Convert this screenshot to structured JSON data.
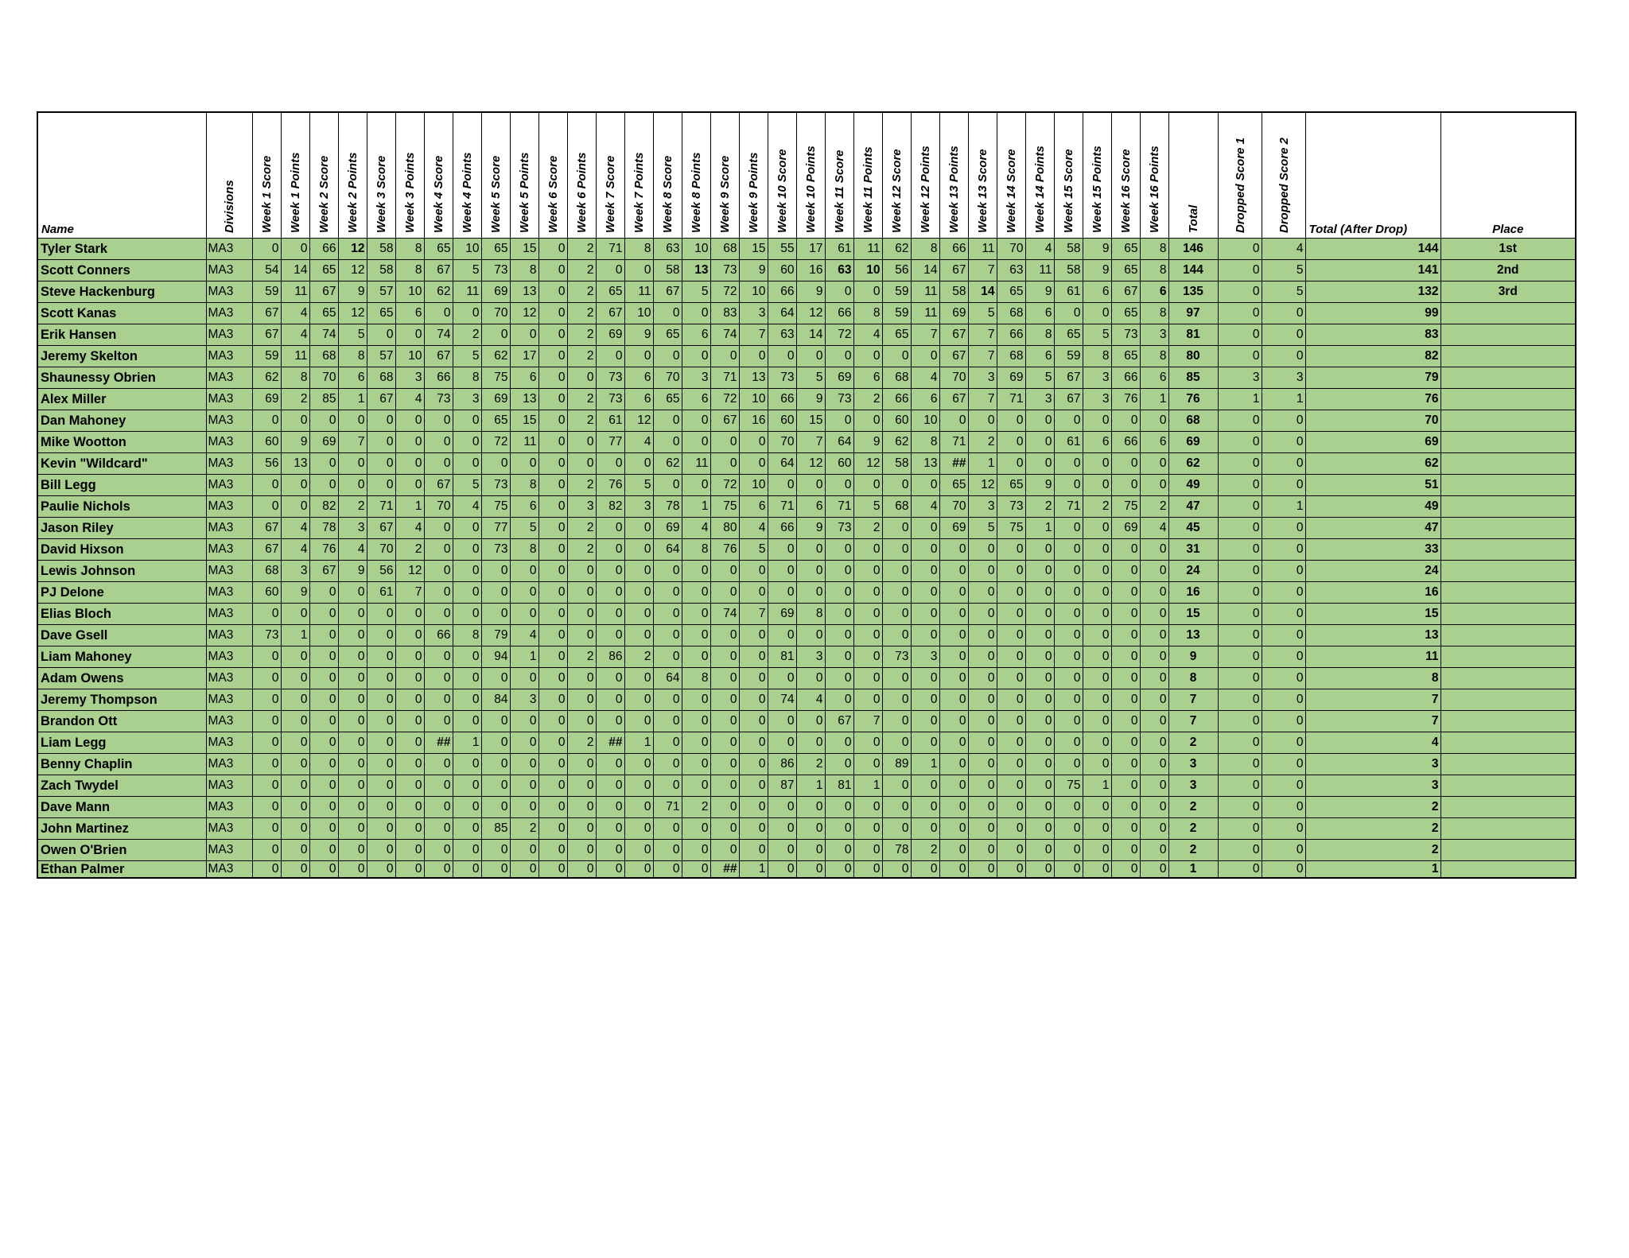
{
  "headers": {
    "name": "Name",
    "divisions": "Divisions",
    "weeks": [
      "Week 1 Score",
      "Week 1 Points",
      "Week 2 Score",
      "Week 2 Points",
      "Week 3 Score",
      "Week 3 Points",
      "Week 4 Score",
      "Week 4 Points",
      "Week 5 Score",
      "Week 5 Points",
      "Week 6 Score",
      "Week 6 Points",
      "Week 7 Score",
      "Week 7 Points",
      "Week 8 Score",
      "Week 8 Points",
      "Week 9 Score",
      "Week 9 Points",
      "Week 10 Score",
      "Week 10 Points",
      "Week 11 Score",
      "Week 11 Points",
      "Week 12 Score",
      "Week 12 Points",
      "Week 13 Points",
      "Week 13 Score",
      "Week 14 Score",
      "Week 14 Points",
      "Week 15 Score",
      "Week 15 Points",
      "Week 16 Score",
      "Week 16 Points"
    ],
    "total": "Total",
    "dropped1": "Dropped Score 1",
    "dropped2": "Dropped Score 2",
    "after": "Total (After Drop)",
    "place": "Place"
  },
  "colors": {
    "row_fill": "#a9d08e",
    "grid": "#000000"
  },
  "rows": [
    {
      "name": "Tyler Stark",
      "div": "MA3",
      "w": [
        "0",
        "0",
        "66",
        "12",
        "58",
        "8",
        "65",
        "10",
        "65",
        "15",
        "0",
        "2",
        "71",
        "8",
        "63",
        "10",
        "68",
        "15",
        "55",
        "17",
        "61",
        "11",
        "62",
        "8",
        "66",
        "11",
        "70",
        "4",
        "58",
        "9",
        "65",
        "8"
      ],
      "bold": [
        3
      ],
      "total": "146",
      "d1": "0",
      "d2": "4",
      "after": "144",
      "place": "1st"
    },
    {
      "name": "Scott Conners",
      "div": "MA3",
      "w": [
        "54",
        "14",
        "65",
        "12",
        "58",
        "8",
        "67",
        "5",
        "73",
        "8",
        "0",
        "2",
        "0",
        "0",
        "58",
        "13",
        "73",
        "9",
        "60",
        "16",
        "63",
        "10",
        "56",
        "14",
        "67",
        "7",
        "63",
        "11",
        "58",
        "9",
        "65",
        "8"
      ],
      "bold": [
        15,
        20,
        21
      ],
      "total": "144",
      "d1": "0",
      "d2": "5",
      "after": "141",
      "place": "2nd"
    },
    {
      "name": "Steve Hackenburg",
      "div": "MA3",
      "w": [
        "59",
        "11",
        "67",
        "9",
        "57",
        "10",
        "62",
        "11",
        "69",
        "13",
        "0",
        "2",
        "65",
        "11",
        "67",
        "5",
        "72",
        "10",
        "66",
        "9",
        "0",
        "0",
        "59",
        "11",
        "58",
        "14",
        "65",
        "9",
        "61",
        "6",
        "67",
        "6"
      ],
      "bold": [
        25,
        31
      ],
      "total": "135",
      "d1": "0",
      "d2": "5",
      "after": "132",
      "place": "3rd"
    },
    {
      "name": "Scott Kanas",
      "div": "MA3",
      "w": [
        "67",
        "4",
        "65",
        "12",
        "65",
        "6",
        "0",
        "0",
        "70",
        "12",
        "0",
        "2",
        "67",
        "10",
        "0",
        "0",
        "83",
        "3",
        "64",
        "12",
        "66",
        "8",
        "59",
        "11",
        "69",
        "5",
        "68",
        "6",
        "0",
        "0",
        "65",
        "8"
      ],
      "bold": [],
      "total": "97",
      "d1": "0",
      "d2": "0",
      "after": "99",
      "place": ""
    },
    {
      "name": "Erik Hansen",
      "div": "MA3",
      "w": [
        "67",
        "4",
        "74",
        "5",
        "0",
        "0",
        "74",
        "2",
        "0",
        "0",
        "0",
        "2",
        "69",
        "9",
        "65",
        "6",
        "74",
        "7",
        "63",
        "14",
        "72",
        "4",
        "65",
        "7",
        "67",
        "7",
        "66",
        "8",
        "65",
        "5",
        "73",
        "3"
      ],
      "bold": [],
      "total": "81",
      "d1": "0",
      "d2": "0",
      "after": "83",
      "place": ""
    },
    {
      "name": "Jeremy Skelton",
      "div": "MA3",
      "w": [
        "59",
        "11",
        "68",
        "8",
        "57",
        "10",
        "67",
        "5",
        "62",
        "17",
        "0",
        "2",
        "0",
        "0",
        "0",
        "0",
        "0",
        "0",
        "0",
        "0",
        "0",
        "0",
        "0",
        "0",
        "67",
        "7",
        "68",
        "6",
        "59",
        "8",
        "65",
        "8"
      ],
      "bold": [],
      "total": "80",
      "d1": "0",
      "d2": "0",
      "after": "82",
      "place": ""
    },
    {
      "name": "Shaunessy Obrien",
      "div": "MA3",
      "w": [
        "62",
        "8",
        "70",
        "6",
        "68",
        "3",
        "66",
        "8",
        "75",
        "6",
        "0",
        "0",
        "73",
        "6",
        "70",
        "3",
        "71",
        "13",
        "73",
        "5",
        "69",
        "6",
        "68",
        "4",
        "70",
        "3",
        "69",
        "5",
        "67",
        "3",
        "66",
        "6"
      ],
      "bold": [],
      "total": "85",
      "d1": "3",
      "d2": "3",
      "after": "79",
      "place": ""
    },
    {
      "name": "Alex Miller",
      "div": "MA3",
      "w": [
        "69",
        "2",
        "85",
        "1",
        "67",
        "4",
        "73",
        "3",
        "69",
        "13",
        "0",
        "2",
        "73",
        "6",
        "65",
        "6",
        "72",
        "10",
        "66",
        "9",
        "73",
        "2",
        "66",
        "6",
        "67",
        "7",
        "71",
        "3",
        "67",
        "3",
        "76",
        "1"
      ],
      "bold": [],
      "total": "76",
      "d1": "1",
      "d2": "1",
      "after": "76",
      "place": ""
    },
    {
      "name": "Dan Mahoney",
      "div": "MA3",
      "w": [
        "0",
        "0",
        "0",
        "0",
        "0",
        "0",
        "0",
        "0",
        "65",
        "15",
        "0",
        "2",
        "61",
        "12",
        "0",
        "0",
        "67",
        "16",
        "60",
        "15",
        "0",
        "0",
        "60",
        "10",
        "0",
        "0",
        "0",
        "0",
        "0",
        "0",
        "0",
        "0"
      ],
      "bold": [],
      "total": "68",
      "d1": "0",
      "d2": "0",
      "after": "70",
      "place": ""
    },
    {
      "name": "Mike Wootton",
      "div": "MA3",
      "w": [
        "60",
        "9",
        "69",
        "7",
        "0",
        "0",
        "0",
        "0",
        "72",
        "11",
        "0",
        "0",
        "77",
        "4",
        "0",
        "0",
        "0",
        "0",
        "70",
        "7",
        "64",
        "9",
        "62",
        "8",
        "71",
        "2",
        "0",
        "0",
        "61",
        "6",
        "66",
        "6"
      ],
      "bold": [],
      "total": "69",
      "d1": "0",
      "d2": "0",
      "after": "69",
      "place": ""
    },
    {
      "name": "Kevin \"Wildcard\"",
      "div": "MA3",
      "w": [
        "56",
        "13",
        "0",
        "0",
        "0",
        "0",
        "0",
        "0",
        "0",
        "0",
        "0",
        "0",
        "0",
        "0",
        "62",
        "11",
        "0",
        "0",
        "64",
        "12",
        "60",
        "12",
        "58",
        "13",
        "##",
        "1",
        "0",
        "0",
        "0",
        "0",
        "0",
        "0"
      ],
      "bold": [
        24
      ],
      "total": "62",
      "d1": "0",
      "d2": "0",
      "after": "62",
      "place": ""
    },
    {
      "name": "Bill Legg",
      "div": "MA3",
      "w": [
        "0",
        "0",
        "0",
        "0",
        "0",
        "0",
        "67",
        "5",
        "73",
        "8",
        "0",
        "2",
        "76",
        "5",
        "0",
        "0",
        "72",
        "10",
        "0",
        "0",
        "0",
        "0",
        "0",
        "0",
        "65",
        "12",
        "65",
        "9",
        "0",
        "0",
        "0",
        "0"
      ],
      "bold": [],
      "total": "49",
      "d1": "0",
      "d2": "0",
      "after": "51",
      "place": ""
    },
    {
      "name": "Paulie Nichols",
      "div": "MA3",
      "w": [
        "0",
        "0",
        "82",
        "2",
        "71",
        "1",
        "70",
        "4",
        "75",
        "6",
        "0",
        "3",
        "82",
        "3",
        "78",
        "1",
        "75",
        "6",
        "71",
        "6",
        "71",
        "5",
        "68",
        "4",
        "70",
        "3",
        "73",
        "2",
        "71",
        "2",
        "75",
        "2"
      ],
      "bold": [],
      "total": "47",
      "d1": "0",
      "d2": "1",
      "after": "49",
      "place": ""
    },
    {
      "name": "Jason Riley",
      "div": "MA3",
      "w": [
        "67",
        "4",
        "78",
        "3",
        "67",
        "4",
        "0",
        "0",
        "77",
        "5",
        "0",
        "2",
        "0",
        "0",
        "69",
        "4",
        "80",
        "4",
        "66",
        "9",
        "73",
        "2",
        "0",
        "0",
        "69",
        "5",
        "75",
        "1",
        "0",
        "0",
        "69",
        "4"
      ],
      "bold": [],
      "total": "45",
      "d1": "0",
      "d2": "0",
      "after": "47",
      "place": ""
    },
    {
      "name": "David Hixson",
      "div": "MA3",
      "w": [
        "67",
        "4",
        "76",
        "4",
        "70",
        "2",
        "0",
        "0",
        "73",
        "8",
        "0",
        "2",
        "0",
        "0",
        "64",
        "8",
        "76",
        "5",
        "0",
        "0",
        "0",
        "0",
        "0",
        "0",
        "0",
        "0",
        "0",
        "0",
        "0",
        "0",
        "0",
        "0"
      ],
      "bold": [],
      "total": "31",
      "d1": "0",
      "d2": "0",
      "after": "33",
      "place": ""
    },
    {
      "name": "Lewis Johnson",
      "div": "MA3",
      "w": [
        "68",
        "3",
        "67",
        "9",
        "56",
        "12",
        "0",
        "0",
        "0",
        "0",
        "0",
        "0",
        "0",
        "0",
        "0",
        "0",
        "0",
        "0",
        "0",
        "0",
        "0",
        "0",
        "0",
        "0",
        "0",
        "0",
        "0",
        "0",
        "0",
        "0",
        "0",
        "0"
      ],
      "bold": [],
      "total": "24",
      "d1": "0",
      "d2": "0",
      "after": "24",
      "place": ""
    },
    {
      "name": "PJ Delone",
      "div": "MA3",
      "w": [
        "60",
        "9",
        "0",
        "0",
        "61",
        "7",
        "0",
        "0",
        "0",
        "0",
        "0",
        "0",
        "0",
        "0",
        "0",
        "0",
        "0",
        "0",
        "0",
        "0",
        "0",
        "0",
        "0",
        "0",
        "0",
        "0",
        "0",
        "0",
        "0",
        "0",
        "0",
        "0"
      ],
      "bold": [],
      "total": "16",
      "d1": "0",
      "d2": "0",
      "after": "16",
      "place": ""
    },
    {
      "name": "Elias Bloch",
      "div": "MA3",
      "w": [
        "0",
        "0",
        "0",
        "0",
        "0",
        "0",
        "0",
        "0",
        "0",
        "0",
        "0",
        "0",
        "0",
        "0",
        "0",
        "0",
        "74",
        "7",
        "69",
        "8",
        "0",
        "0",
        "0",
        "0",
        "0",
        "0",
        "0",
        "0",
        "0",
        "0",
        "0",
        "0"
      ],
      "bold": [],
      "total": "15",
      "d1": "0",
      "d2": "0",
      "after": "15",
      "place": ""
    },
    {
      "name": "Dave Gsell",
      "div": "MA3",
      "w": [
        "73",
        "1",
        "0",
        "0",
        "0",
        "0",
        "66",
        "8",
        "79",
        "4",
        "0",
        "0",
        "0",
        "0",
        "0",
        "0",
        "0",
        "0",
        "0",
        "0",
        "0",
        "0",
        "0",
        "0",
        "0",
        "0",
        "0",
        "0",
        "0",
        "0",
        "0",
        "0"
      ],
      "bold": [],
      "total": "13",
      "d1": "0",
      "d2": "0",
      "after": "13",
      "place": ""
    },
    {
      "name": "Liam Mahoney",
      "div": "MA3",
      "w": [
        "0",
        "0",
        "0",
        "0",
        "0",
        "0",
        "0",
        "0",
        "94",
        "1",
        "0",
        "2",
        "86",
        "2",
        "0",
        "0",
        "0",
        "0",
        "81",
        "3",
        "0",
        "0",
        "73",
        "3",
        "0",
        "0",
        "0",
        "0",
        "0",
        "0",
        "0",
        "0"
      ],
      "bold": [],
      "total": "9",
      "d1": "0",
      "d2": "0",
      "after": "11",
      "place": ""
    },
    {
      "name": "Adam Owens",
      "div": "MA3",
      "w": [
        "0",
        "0",
        "0",
        "0",
        "0",
        "0",
        "0",
        "0",
        "0",
        "0",
        "0",
        "0",
        "0",
        "0",
        "64",
        "8",
        "0",
        "0",
        "0",
        "0",
        "0",
        "0",
        "0",
        "0",
        "0",
        "0",
        "0",
        "0",
        "0",
        "0",
        "0",
        "0"
      ],
      "bold": [],
      "total": "8",
      "d1": "0",
      "d2": "0",
      "after": "8",
      "place": ""
    },
    {
      "name": "Jeremy Thompson",
      "div": "MA3",
      "w": [
        "0",
        "0",
        "0",
        "0",
        "0",
        "0",
        "0",
        "0",
        "84",
        "3",
        "0",
        "0",
        "0",
        "0",
        "0",
        "0",
        "0",
        "0",
        "74",
        "4",
        "0",
        "0",
        "0",
        "0",
        "0",
        "0",
        "0",
        "0",
        "0",
        "0",
        "0",
        "0"
      ],
      "bold": [],
      "total": "7",
      "d1": "0",
      "d2": "0",
      "after": "7",
      "place": ""
    },
    {
      "name": "Brandon Ott",
      "div": "MA3",
      "w": [
        "0",
        "0",
        "0",
        "0",
        "0",
        "0",
        "0",
        "0",
        "0",
        "0",
        "0",
        "0",
        "0",
        "0",
        "0",
        "0",
        "0",
        "0",
        "0",
        "0",
        "67",
        "7",
        "0",
        "0",
        "0",
        "0",
        "0",
        "0",
        "0",
        "0",
        "0",
        "0"
      ],
      "bold": [],
      "total": "7",
      "d1": "0",
      "d2": "0",
      "after": "7",
      "place": ""
    },
    {
      "name": "Liam Legg",
      "div": "MA3",
      "w": [
        "0",
        "0",
        "0",
        "0",
        "0",
        "0",
        "##",
        "1",
        "0",
        "0",
        "0",
        "2",
        "##",
        "1",
        "0",
        "0",
        "0",
        "0",
        "0",
        "0",
        "0",
        "0",
        "0",
        "0",
        "0",
        "0",
        "0",
        "0",
        "0",
        "0",
        "0",
        "0"
      ],
      "bold": [
        6,
        12
      ],
      "total": "2",
      "d1": "0",
      "d2": "0",
      "after": "4",
      "place": ""
    },
    {
      "name": "Benny Chaplin",
      "div": "MA3",
      "w": [
        "0",
        "0",
        "0",
        "0",
        "0",
        "0",
        "0",
        "0",
        "0",
        "0",
        "0",
        "0",
        "0",
        "0",
        "0",
        "0",
        "0",
        "0",
        "86",
        "2",
        "0",
        "0",
        "89",
        "1",
        "0",
        "0",
        "0",
        "0",
        "0",
        "0",
        "0",
        "0"
      ],
      "bold": [],
      "total": "3",
      "d1": "0",
      "d2": "0",
      "after": "3",
      "place": ""
    },
    {
      "name": "Zach Twydel",
      "div": "MA3",
      "w": [
        "0",
        "0",
        "0",
        "0",
        "0",
        "0",
        "0",
        "0",
        "0",
        "0",
        "0",
        "0",
        "0",
        "0",
        "0",
        "0",
        "0",
        "0",
        "87",
        "1",
        "81",
        "1",
        "0",
        "0",
        "0",
        "0",
        "0",
        "0",
        "75",
        "1",
        "0",
        "0"
      ],
      "bold": [],
      "total": "3",
      "d1": "0",
      "d2": "0",
      "after": "3",
      "place": ""
    },
    {
      "name": "Dave Mann",
      "div": "MA3",
      "w": [
        "0",
        "0",
        "0",
        "0",
        "0",
        "0",
        "0",
        "0",
        "0",
        "0",
        "0",
        "0",
        "0",
        "0",
        "71",
        "2",
        "0",
        "0",
        "0",
        "0",
        "0",
        "0",
        "0",
        "0",
        "0",
        "0",
        "0",
        "0",
        "0",
        "0",
        "0",
        "0"
      ],
      "bold": [],
      "total": "2",
      "d1": "0",
      "d2": "0",
      "after": "2",
      "place": ""
    },
    {
      "name": "John Martinez",
      "div": "MA3",
      "w": [
        "0",
        "0",
        "0",
        "0",
        "0",
        "0",
        "0",
        "0",
        "85",
        "2",
        "0",
        "0",
        "0",
        "0",
        "0",
        "0",
        "0",
        "0",
        "0",
        "0",
        "0",
        "0",
        "0",
        "0",
        "0",
        "0",
        "0",
        "0",
        "0",
        "0",
        "0",
        "0"
      ],
      "bold": [],
      "total": "2",
      "d1": "0",
      "d2": "0",
      "after": "2",
      "place": ""
    },
    {
      "name": "Owen O'Brien",
      "div": "MA3",
      "w": [
        "0",
        "0",
        "0",
        "0",
        "0",
        "0",
        "0",
        "0",
        "0",
        "0",
        "0",
        "0",
        "0",
        "0",
        "0",
        "0",
        "0",
        "0",
        "0",
        "0",
        "0",
        "0",
        "78",
        "2",
        "0",
        "0",
        "0",
        "0",
        "0",
        "0",
        "0",
        "0"
      ],
      "bold": [],
      "total": "2",
      "d1": "0",
      "d2": "0",
      "after": "2",
      "place": ""
    },
    {
      "name": "Ethan Palmer",
      "div": "MA3",
      "w": [
        "0",
        "0",
        "0",
        "0",
        "0",
        "0",
        "0",
        "0",
        "0",
        "0",
        "0",
        "0",
        "0",
        "0",
        "0",
        "0",
        "##",
        "1",
        "0",
        "0",
        "0",
        "0",
        "0",
        "0",
        "0",
        "0",
        "0",
        "0",
        "0",
        "0",
        "0",
        "0"
      ],
      "bold": [
        16
      ],
      "total": "1",
      "d1": "0",
      "d2": "0",
      "after": "1",
      "place": ""
    }
  ]
}
